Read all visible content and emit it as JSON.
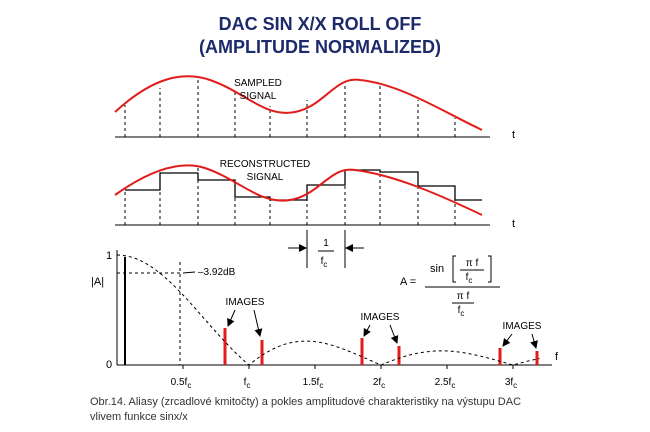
{
  "title": [
    "DAC SIN X/X ROLL OFF",
    "(AMPLITUDE NORMALIZED)"
  ],
  "sampled": {
    "label": [
      "SAMPLED",
      "SIGNAL"
    ],
    "axis": "t"
  },
  "reconstructed": {
    "label": [
      "RECONSTRUCTED",
      "SIGNAL"
    ],
    "axis": "t"
  },
  "period": {
    "num": "1",
    "den": {
      "main": "f",
      "sub": "c"
    }
  },
  "response": {
    "y_label": "|A|",
    "y_top": "1",
    "y_zero": "0",
    "db": "–3.92dB",
    "x_axis": "f",
    "x_labels": [
      {
        "main": "0.5f",
        "sub": "c"
      },
      {
        "main": "f",
        "sub": "c"
      },
      {
        "main": "1.5f",
        "sub": "c"
      },
      {
        "main": "2f",
        "sub": "c"
      },
      {
        "main": "2.5f",
        "sub": "c"
      },
      {
        "main": "3f",
        "sub": "c"
      }
    ],
    "images": [
      "IMAGES",
      "IMAGES",
      "IMAGES"
    ],
    "formula": {
      "lhs": "A =",
      "sin": "sin",
      "num_top": "π f",
      "num_bottom": "f",
      "num_bottom_sub": "c",
      "den_top": "π f",
      "den_bottom": "f",
      "den_bottom_sub": "c"
    }
  },
  "caption": [
    "Obr.14. Aliasy (zrcadlové kmitočty) a pokles amplitudové charakteristiky na výstupu DAC",
    "vlivem funkce sinx/x"
  ]
}
